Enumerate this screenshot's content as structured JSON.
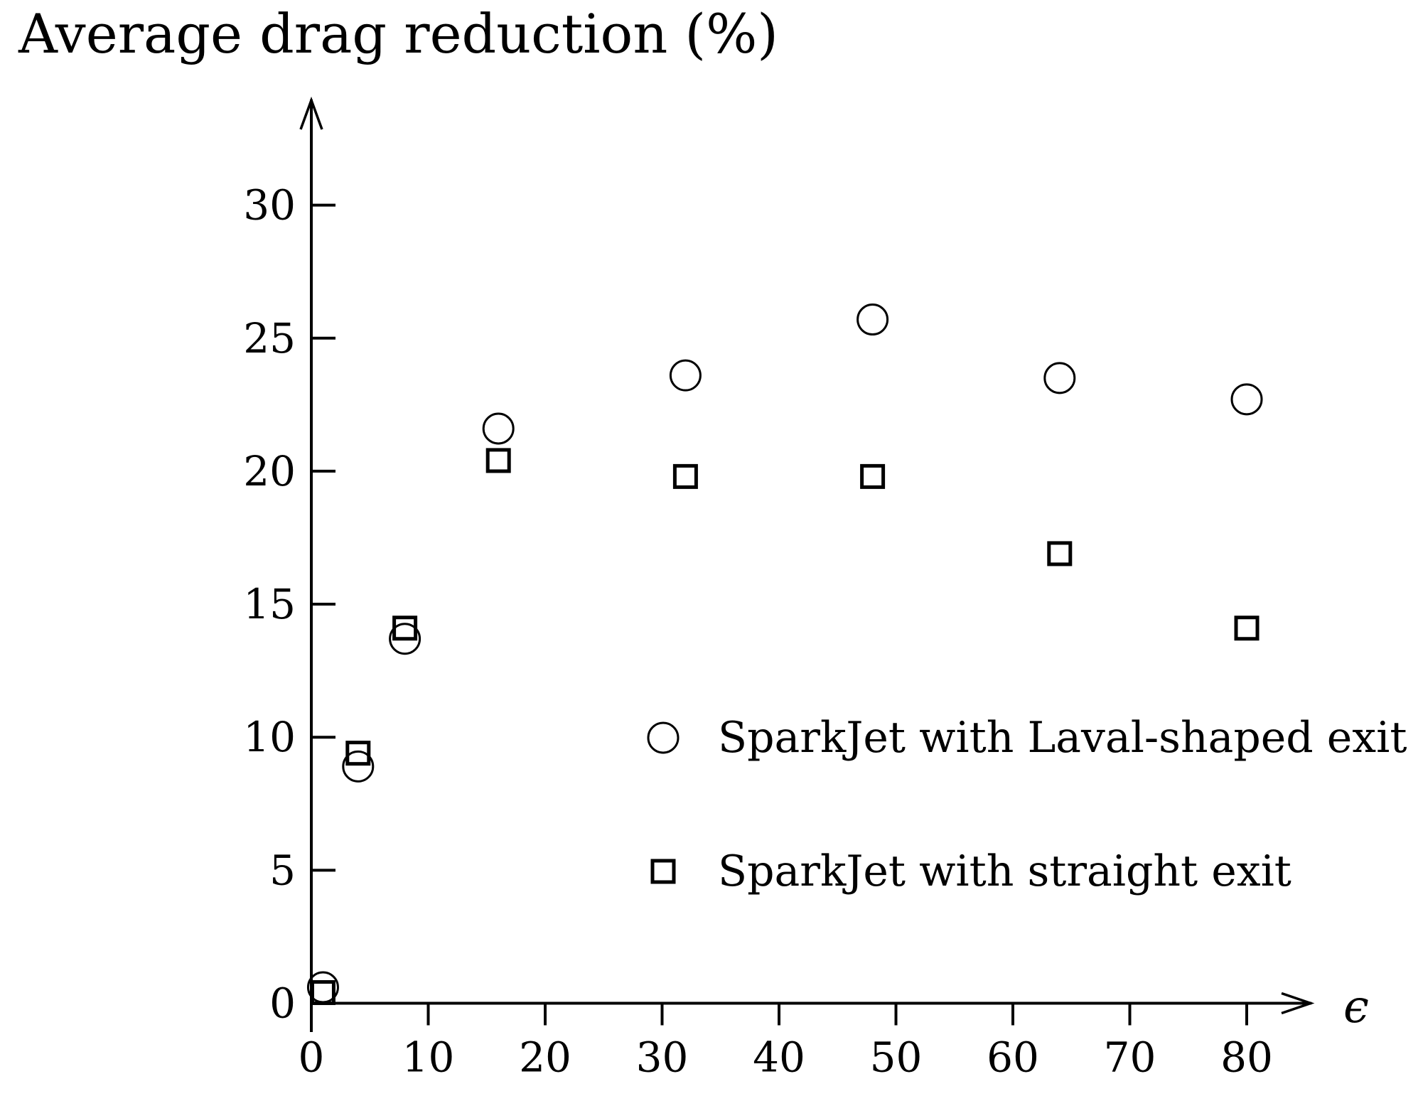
{
  "page": {
    "background_color": "#ffffff",
    "ink_color": "#000000"
  },
  "chart_data": {
    "type": "scatter",
    "title": "Average drag reduction (%)",
    "xlabel": "ϵ",
    "ylabel": "",
    "x_ticks": [
      0,
      10,
      20,
      30,
      40,
      50,
      60,
      70,
      80
    ],
    "y_ticks": [
      0,
      5,
      10,
      15,
      20,
      25,
      30
    ],
    "xlim": [
      0,
      86
    ],
    "ylim": [
      0,
      34
    ],
    "grid": false,
    "legend_position": "center-right-inside",
    "series": [
      {
        "name": "SparkJet with Laval-shaped exit",
        "marker": "circle",
        "points": [
          [
            1,
            0.6
          ],
          [
            4,
            8.9
          ],
          [
            8,
            13.7
          ],
          [
            16,
            21.6
          ],
          [
            32,
            23.6
          ],
          [
            48,
            25.7
          ],
          [
            64,
            23.5
          ],
          [
            80,
            22.7
          ]
        ]
      },
      {
        "name": "SparkJet with straight exit",
        "marker": "square",
        "points": [
          [
            1,
            0.4
          ],
          [
            4,
            9.4
          ],
          [
            8,
            14.1
          ],
          [
            16,
            20.4
          ],
          [
            32,
            19.8
          ],
          [
            48,
            19.8
          ],
          [
            64,
            16.9
          ],
          [
            80,
            14.1
          ]
        ]
      }
    ]
  }
}
